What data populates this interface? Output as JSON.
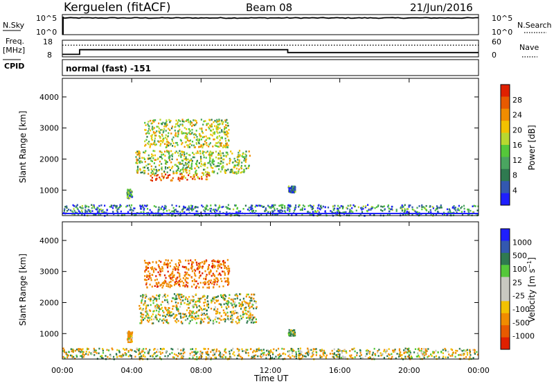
{
  "header": {
    "station": "Kerguelen (fitACF)",
    "beam": "Beam 08",
    "date": "21/Jun/2016"
  },
  "status_panels": {
    "nsky_label": "N.Sky",
    "nsearch_label": "N.Search",
    "noise_ticks_left": [
      "10^5",
      "10^0"
    ],
    "noise_ticks_right": [
      "10^5",
      "10^0"
    ],
    "freq_label_1": "Freq.",
    "freq_label_2": "[MHz]",
    "freq_ticks": [
      "18",
      "8"
    ],
    "nave_label": "Nave",
    "nave_ticks": [
      "60",
      "0"
    ],
    "cpid_label": "CPID",
    "cpid_text": "normal (fast) -151",
    "freq_steps": [
      {
        "start_h": 0,
        "end_h": 1.0,
        "mhz": 9.5
      },
      {
        "start_h": 1.0,
        "end_h": 13.0,
        "mhz": 12.3
      },
      {
        "start_h": 13.0,
        "end_h": 24,
        "mhz": 10.6
      }
    ],
    "nave_level": 42,
    "noise_log_level": 4.4
  },
  "chart_data": [
    {
      "type": "heatmap",
      "name": "power",
      "ylabel": "Slant Range [km]",
      "ylim": [
        180,
        4600
      ],
      "y_ticks": [
        1000,
        2000,
        3000,
        4000
      ],
      "x_ticks": [
        "00:00",
        "04:00",
        "08:00",
        "12:00",
        "16:00",
        "20:00",
        "00:00"
      ],
      "xlim_hours": [
        0,
        24
      ],
      "colorbar": {
        "label": "Power [dB]",
        "ticks": [
          "4",
          "8",
          "12",
          "16",
          "20",
          "24",
          "28"
        ],
        "range": [
          0,
          30
        ],
        "colors": [
          "#1f1fff",
          "#3358b0",
          "#2f7a50",
          "#4aa560",
          "#55c83a",
          "#b8d830",
          "#f2c200",
          "#f08c00",
          "#e85a00",
          "#e02000"
        ]
      },
      "regions": [
        {
          "t0": 3.7,
          "t1": 4.0,
          "r0": 750,
          "r1": 1050,
          "value": 10
        },
        {
          "t0": 4.2,
          "t1": 10.8,
          "r0": 1550,
          "r1": 2300,
          "value": 15
        },
        {
          "t0": 5.0,
          "t1": 8.5,
          "r0": 1330,
          "r1": 1550,
          "value": 24
        },
        {
          "t0": 4.7,
          "t1": 9.6,
          "r0": 2400,
          "r1": 3300,
          "value": 16
        },
        {
          "t0": 0.0,
          "t1": 24.0,
          "r0": 200,
          "r1": 550,
          "value": 8
        },
        {
          "t0": 13.0,
          "t1": 13.4,
          "r0": 950,
          "r1": 1150,
          "value": 8
        }
      ]
    },
    {
      "type": "heatmap",
      "name": "velocity",
      "ylabel": "Slant Range [km]",
      "xlabel": "Time UT",
      "ylim": [
        180,
        4600
      ],
      "y_ticks": [
        1000,
        2000,
        3000,
        4000
      ],
      "x_ticks": [
        "00:00",
        "04:00",
        "08:00",
        "12:00",
        "16:00",
        "20:00",
        "00:00"
      ],
      "xlim_hours": [
        0,
        24
      ],
      "colorbar": {
        "label": "Velocity [m s^-1]",
        "ticks": [
          "1000",
          "500",
          "100",
          "25",
          "-25",
          "-100",
          "-500",
          "-1000"
        ],
        "colors": [
          "#1f1fff",
          "#3358b0",
          "#2f7a50",
          "#55c83a",
          "#c8c8c0",
          "#c8c8c0",
          "#f2c200",
          "#f08c00",
          "#e85a00",
          "#e02000"
        ]
      },
      "regions": [
        {
          "t0": 3.7,
          "t1": 4.0,
          "r0": 750,
          "r1": 1100,
          "value": -200
        },
        {
          "t0": 4.4,
          "t1": 11.2,
          "r0": 1350,
          "r1": 2300,
          "value": 0
        },
        {
          "t0": 4.7,
          "t1": 9.6,
          "r0": 2500,
          "r1": 3400,
          "value": -400
        },
        {
          "t0": 0.0,
          "t1": 24.0,
          "r0": 200,
          "r1": 550,
          "value": 0
        },
        {
          "t0": 13.0,
          "t1": 13.4,
          "r0": 950,
          "r1": 1150,
          "value": 80
        }
      ]
    }
  ]
}
